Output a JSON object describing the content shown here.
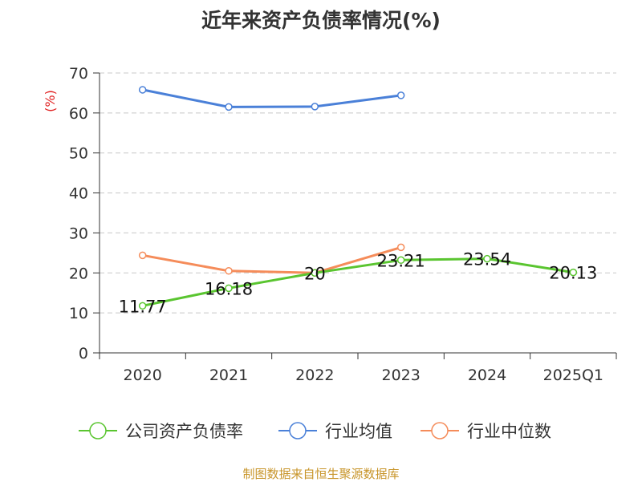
{
  "chart_data": {
    "type": "line",
    "title": "近年来资产负债率情况(%)",
    "ylabel": "(%)",
    "xlabel": "",
    "categories": [
      "2020",
      "2021",
      "2022",
      "2023",
      "2024",
      "2025Q1"
    ],
    "ylim": [
      0,
      70
    ],
    "yticks": [
      0,
      10,
      20,
      30,
      40,
      50,
      60,
      70
    ],
    "grid": true,
    "legend_position": "bottom",
    "series": [
      {
        "name": "公司资产负债率",
        "color": "#5ac530",
        "values": [
          11.77,
          16.18,
          20,
          23.21,
          23.54,
          20.13
        ],
        "labels": [
          "11.77",
          "16.18",
          "20",
          "23.21",
          "23.54",
          "20.13"
        ]
      },
      {
        "name": "行业均值",
        "color": "#4a80d8",
        "values": [
          65.8,
          61.5,
          61.6,
          64.4,
          null,
          null
        ]
      },
      {
        "name": "行业中位数",
        "color": "#f58c5a",
        "values": [
          24.4,
          20.5,
          20.0,
          26.4,
          null,
          null
        ]
      }
    ]
  },
  "source_note": "制图数据来自恒生聚源数据库"
}
